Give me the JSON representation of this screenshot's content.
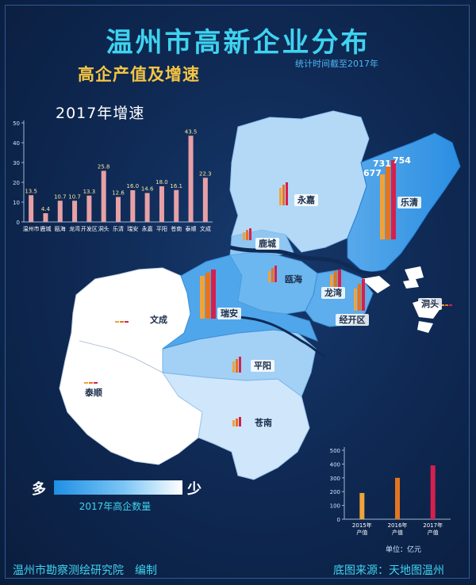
{
  "title": "温州市高新企业分布",
  "subtitle": "高企产值及增速",
  "stat_time": "统计时间截至2017年",
  "growth_chart_title": "2017年增速",
  "colors": {
    "accent": "#3fd3f0",
    "subtitle": "#f5c443",
    "bar_pink": "#e7a1a6",
    "y2015": "#f0a33a",
    "y2016": "#e4751f",
    "y2017": "#d5204f"
  },
  "regions": [
    {
      "id": "yongjia",
      "label": "永嘉",
      "box": true
    },
    {
      "id": "yueqing",
      "label": "乐清",
      "box": true
    },
    {
      "id": "lucheng",
      "label": "鹿城",
      "box": true
    },
    {
      "id": "ouhai",
      "label": "瓯海",
      "box": false
    },
    {
      "id": "longwan",
      "label": "龙湾",
      "box": true
    },
    {
      "id": "kaifaqu",
      "label": "经开区",
      "box": true
    },
    {
      "id": "dongtou",
      "label": "洞头",
      "box": true
    },
    {
      "id": "ruian",
      "label": "瑞安",
      "box": true
    },
    {
      "id": "wencheng",
      "label": "文成",
      "box": false
    },
    {
      "id": "pingyang",
      "label": "平阳",
      "box": true
    },
    {
      "id": "taishun",
      "label": "泰顺",
      "box": true
    },
    {
      "id": "cangnan",
      "label": "苍南",
      "box": false
    }
  ],
  "value_labels": [
    "677",
    "731",
    "754"
  ],
  "legend": {
    "high": "多",
    "low": "少",
    "caption": "2017年高企数量"
  },
  "chart_data": [
    {
      "type": "bar",
      "title": "2017年增速",
      "categories": [
        "温州市",
        "鹿城",
        "瓯海",
        "龙湾",
        "开发区",
        "洞头",
        "乐清",
        "瑞安",
        "永嘉",
        "平阳",
        "苍南",
        "泰顺",
        "文成"
      ],
      "values": [
        13.5,
        4.4,
        10.7,
        10.7,
        13.3,
        25.8,
        12.6,
        16.0,
        14.6,
        18.0,
        16.1,
        43.5,
        22.3
      ],
      "value_labels": [
        "13.5",
        "4.4",
        "10.7",
        "10.7",
        "13.3",
        "25.8",
        "12.6",
        "16.0",
        "14.6",
        "18.0",
        "16.1",
        "43.5",
        "22.3"
      ],
      "ylim": [
        0,
        50
      ],
      "yticks": [
        "0",
        "10",
        "20",
        "30",
        "40",
        "50"
      ]
    },
    {
      "type": "bar",
      "categories": [
        "2015年产值",
        "2016年产值",
        "2017年产值"
      ],
      "category_lines": [
        [
          "2015年",
          "产值"
        ],
        [
          "2016年",
          "产值"
        ],
        [
          "2017年",
          "产值"
        ]
      ],
      "values": [
        190,
        300,
        390
      ],
      "ylim": [
        0,
        500
      ],
      "yticks": [
        "0",
        "100",
        "200",
        "300",
        "400",
        "500"
      ],
      "unit": "单位：亿元"
    }
  ],
  "footer": {
    "left": "温州市勘察测绘研究院　编制",
    "right": "底图来源：天地图温州"
  }
}
